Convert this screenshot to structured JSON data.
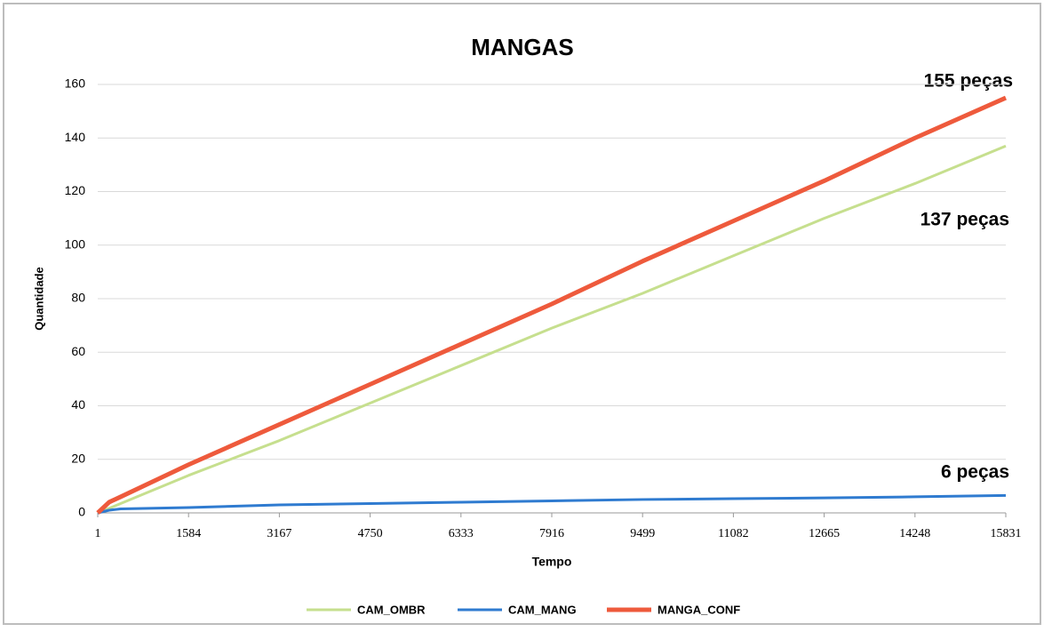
{
  "chart_data": {
    "type": "line",
    "title": "MANGAS",
    "x_label": "Tempo",
    "y_label": "Quantidade",
    "x": [
      1,
      200,
      400,
      1584,
      3167,
      4750,
      6333,
      7916,
      9499,
      11082,
      12665,
      14248,
      15831
    ],
    "series": [
      {
        "name": "CAM_OMBR",
        "color": "#c6df8e",
        "values": [
          0,
          1.7,
          3.5,
          14,
          27,
          41,
          55,
          69,
          82,
          96,
          110,
          123,
          137
        ]
      },
      {
        "name": "CAM_MANG",
        "color": "#2f7bd0",
        "values": [
          0,
          1,
          1.5,
          2,
          3,
          3.5,
          4,
          4.5,
          5,
          5.3,
          5.6,
          6,
          6.5
        ]
      },
      {
        "name": "MANGA_CONF",
        "color": "#ee5a3c",
        "values": [
          0,
          4,
          6,
          18,
          33,
          48,
          63,
          78,
          94,
          109,
          124,
          140,
          155
        ]
      }
    ],
    "xlim": [
      1,
      15831
    ],
    "xticks": [
      1,
      1584,
      3167,
      4750,
      6333,
      7916,
      9499,
      11082,
      12665,
      14248,
      15831
    ],
    "ylim": [
      0,
      160
    ],
    "yticks": [
      0,
      20,
      40,
      60,
      80,
      100,
      120,
      140,
      160
    ],
    "grid": true,
    "legend": "bottom",
    "annotations": [
      "155 peças",
      "137 peças",
      "6 peças"
    ]
  }
}
